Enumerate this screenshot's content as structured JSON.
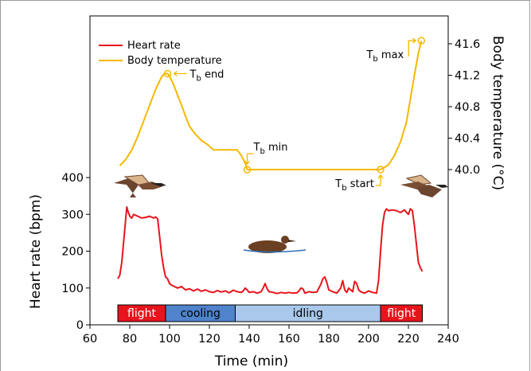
{
  "chart_data": {
    "type": "line",
    "xlabel": "Time (min)",
    "ylabel_left": "Heart rate (bpm)",
    "ylabel_right": "Body temperature (°C)",
    "xlim": [
      60,
      240
    ],
    "ylim_left": [
      0,
      400
    ],
    "ylim_right": [
      40.0,
      41.6
    ],
    "x_ticks": [
      60,
      80,
      100,
      120,
      140,
      160,
      180,
      200,
      220,
      240
    ],
    "y_left_ticks": [
      0,
      100,
      200,
      300,
      400
    ],
    "y_right_ticks": [
      "40.0",
      "40.4",
      "40.8",
      "41.2",
      "41.6"
    ],
    "legend": {
      "position": "top-left",
      "entries": [
        "Heart rate",
        "Body temperature"
      ]
    },
    "colors": {
      "heart_rate": "#e8141c",
      "body_temperature": "#f5b800",
      "flight": "#e8141c",
      "cooling": "#4f83cc",
      "idling": "#a9c8ec"
    },
    "series": [
      {
        "name": "Heart rate",
        "axis": "left",
        "x": [
          74,
          75,
          76,
          77,
          78,
          78.5,
          79,
          80,
          81,
          82,
          84,
          86,
          88,
          90,
          92,
          93,
          94,
          95,
          96,
          97,
          98,
          99,
          100,
          101,
          102,
          104,
          106,
          108,
          110,
          112,
          114,
          116,
          118,
          120,
          122,
          124,
          126,
          128,
          130,
          132,
          134,
          136,
          137,
          138,
          139,
          140,
          142,
          144,
          146,
          147,
          148,
          149,
          150,
          152,
          154,
          156,
          158,
          160,
          162,
          164,
          165,
          166,
          167,
          168,
          170,
          172,
          174,
          176,
          177,
          178,
          179,
          180,
          182,
          184,
          186,
          187,
          188,
          189,
          190,
          192,
          193,
          194,
          195,
          196,
          198,
          200,
          202,
          204,
          205,
          206,
          207,
          208,
          209,
          210,
          212,
          214,
          216,
          218,
          220,
          221,
          222,
          223,
          224,
          225,
          226,
          227
        ],
        "y": [
          125,
          135,
          170,
          230,
          290,
          320,
          310,
          295,
          290,
          300,
          295,
          290,
          292,
          295,
          290,
          293,
          288,
          240,
          190,
          155,
          130,
          125,
          112,
          108,
          105,
          100,
          104,
          95,
          98,
          92,
          97,
          91,
          95,
          90,
          88,
          93,
          89,
          92,
          87,
          94,
          90,
          88,
          92,
          100,
          95,
          88,
          90,
          86,
          90,
          100,
          112,
          98,
          90,
          88,
          85,
          88,
          86,
          88,
          86,
          87,
          92,
          100,
          98,
          86,
          90,
          88,
          89,
          110,
          125,
          130,
          115,
          95,
          90,
          86,
          100,
          120,
          95,
          88,
          100,
          90,
          118,
          112,
          95,
          90,
          86,
          92,
          88,
          86,
          120,
          200,
          270,
          305,
          315,
          310,
          312,
          310,
          305,
          312,
          300,
          315,
          310,
          270,
          220,
          170,
          155,
          145
        ]
      },
      {
        "name": "Body temperature",
        "axis": "right",
        "x": [
          75,
          78,
          81,
          84,
          87,
          90,
          93,
          96,
          97.5,
          99,
          100,
          102,
          104,
          106,
          108,
          110,
          113,
          116,
          119,
          122,
          125,
          128,
          131,
          134,
          136,
          138,
          139,
          141,
          160,
          190,
          206,
          210,
          213,
          216,
          219,
          221,
          223,
          225,
          226.5
        ],
        "y": [
          40.05,
          40.13,
          40.25,
          40.42,
          40.62,
          40.82,
          41.02,
          41.18,
          41.22,
          41.22,
          41.19,
          41.08,
          40.95,
          40.82,
          40.68,
          40.55,
          40.45,
          40.37,
          40.32,
          40.25,
          40.25,
          40.25,
          40.25,
          40.25,
          40.18,
          40.08,
          40.0,
          40.0,
          40.0,
          40.0,
          40.0,
          40.06,
          40.18,
          40.35,
          40.6,
          40.9,
          41.2,
          41.48,
          41.64
        ]
      }
    ],
    "phases": [
      {
        "label": "flight",
        "start": 74,
        "end": 98
      },
      {
        "label": "cooling",
        "start": 98,
        "end": 133
      },
      {
        "label": "idling",
        "start": 133,
        "end": 206
      },
      {
        "label": "flight",
        "start": 206,
        "end": 227
      }
    ],
    "annotations": [
      {
        "label": "T",
        "sub": "b",
        "rest": " end",
        "x": 99,
        "y": 41.22
      },
      {
        "label": "T",
        "sub": "b",
        "rest": " min",
        "x": 139,
        "y": 40.0
      },
      {
        "label": "T",
        "sub": "b",
        "rest": " start",
        "x": 206,
        "y": 40.0
      },
      {
        "label": "T",
        "sub": "b",
        "rest": " max",
        "x": 226.5,
        "y": 41.64
      }
    ],
    "pictograms": [
      "flying-duck-left",
      "swimming-duck",
      "flying-duck-right"
    ]
  }
}
